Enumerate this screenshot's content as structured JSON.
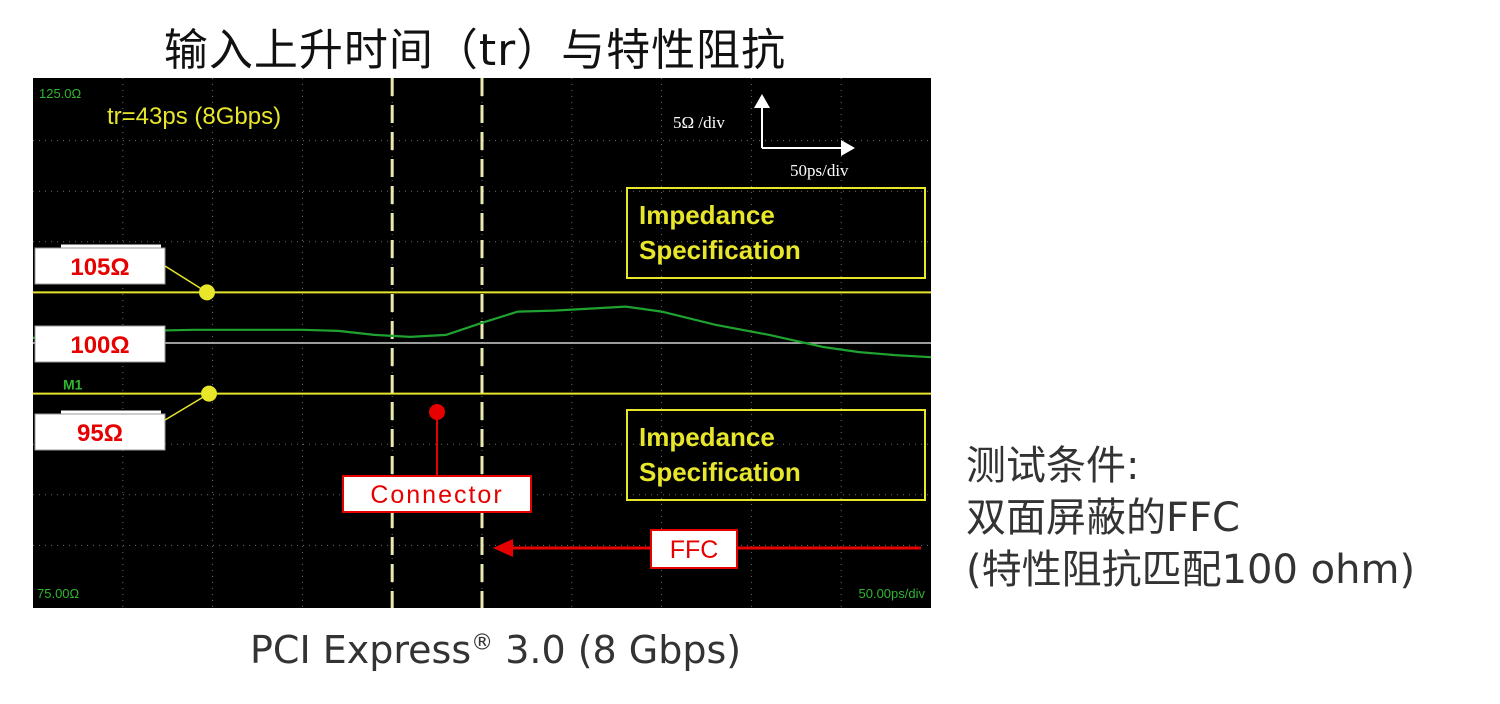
{
  "page": {
    "title": "输入上升时间（tr）与特性阻抗",
    "caption_text": "PCI Express",
    "caption_mark": "®",
    "caption_suffix": " 3.0 (8 Gbps)",
    "conditions": [
      "测试条件:",
      "双面屏蔽的FFC",
      "(特性阻抗匹配100 ohm)"
    ]
  },
  "colors": {
    "background": "#000000",
    "grid": "#6b6b6b",
    "trace": "#1fa22f",
    "spec_line": "#e8e62a",
    "marker_line": "#e9e9b0",
    "label_red": "#e60000"
  },
  "chart_data": {
    "type": "line",
    "title": "",
    "ylim": [
      75,
      125
    ],
    "xlim": [
      0,
      500
    ],
    "y_top_label": "125.0Ω",
    "y_bottom_label": "75.00Ω",
    "x_scale_label": "50.00ps/div",
    "risetime_label": "tr=43ps (8Gbps)",
    "scale_y": "5Ω /div",
    "scale_x": "50ps/div",
    "marker_tag": "M1",
    "series": [
      {
        "name": "",
        "x": [
          0,
          30,
          60,
          90,
          120,
          150,
          170,
          190,
          210,
          230,
          250,
          270,
          290,
          310,
          330,
          350,
          380,
          410,
          440,
          460,
          480,
          500
        ],
        "y": [
          100.5,
          101,
          101.2,
          101.3,
          101.3,
          101.3,
          101.2,
          100.8,
          100.6,
          100.8,
          102,
          103.1,
          103.2,
          103.4,
          103.6,
          103.1,
          101.8,
          100.8,
          99.6,
          99.1,
          98.8,
          98.6
        ]
      }
    ],
    "reference_levels": [
      {
        "label": "105Ω",
        "value": 105
      },
      {
        "label": "100Ω",
        "value": 100
      },
      {
        "label": "95Ω",
        "value": 95
      }
    ],
    "markers": [
      200,
      250
    ],
    "annotations": {
      "spec_box_upper": [
        "Impedance",
        "Specification"
      ],
      "spec_box_lower": [
        "Impedance",
        "Specification"
      ],
      "connector": "Connector",
      "ffc": "FFC"
    }
  }
}
